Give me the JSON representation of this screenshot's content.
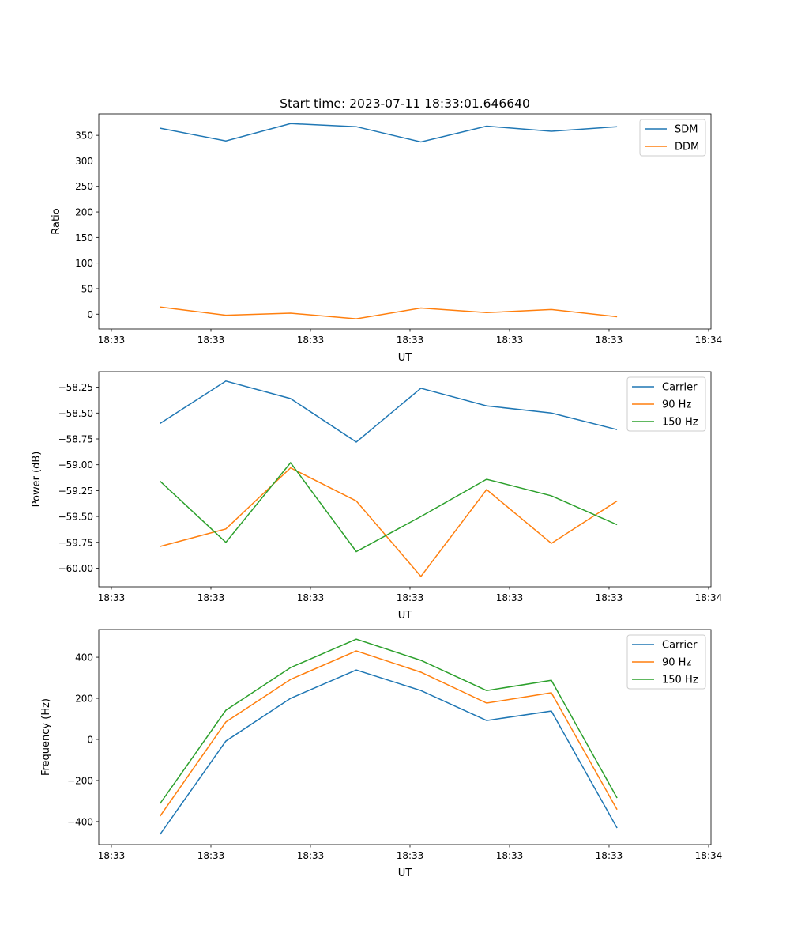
{
  "colors": {
    "c0": "#1f77b4",
    "c1": "#ff7f0e",
    "c2": "#2ca02c"
  },
  "chart_data": [
    {
      "type": "line",
      "title": "Start time: 2023-07-11 18:33:01.646640",
      "xlabel": "UT",
      "ylabel": "Ratio",
      "x": [
        4.9,
        11.5,
        18.0,
        24.6,
        31.1,
        37.7,
        44.2,
        50.8
      ],
      "xlim": [
        -1.27,
        60.24
      ],
      "xticks": [
        0,
        10,
        20,
        30,
        40,
        50,
        60
      ],
      "xtick_labels": [
        "18:33",
        "18:33",
        "18:33",
        "18:33",
        "18:33",
        "18:33",
        "18:34"
      ],
      "ylim": [
        -29,
        392
      ],
      "yticks": [
        0,
        50,
        100,
        150,
        200,
        250,
        300,
        350
      ],
      "ytick_labels": [
        "0",
        "50",
        "100",
        "150",
        "200",
        "250",
        "300",
        "350"
      ],
      "legend_loc": "top-right",
      "series": [
        {
          "name": "SDM",
          "values": [
            364,
            339,
            373,
            367,
            337,
            368,
            358,
            367
          ]
        },
        {
          "name": "DDM",
          "values": [
            14,
            -2,
            2,
            -9,
            12,
            3,
            9,
            -5
          ]
        }
      ]
    },
    {
      "type": "line",
      "title": "",
      "xlabel": "UT",
      "ylabel": "Power (dB)",
      "x": [
        4.9,
        11.5,
        18.0,
        24.6,
        31.1,
        37.7,
        44.2,
        50.8
      ],
      "xlim": [
        -1.27,
        60.24
      ],
      "xticks": [
        0,
        10,
        20,
        30,
        40,
        50,
        60
      ],
      "xtick_labels": [
        "18:33",
        "18:33",
        "18:33",
        "18:33",
        "18:33",
        "18:33",
        "18:34"
      ],
      "ylim": [
        -60.18,
        -58.1
      ],
      "yticks": [
        -60.0,
        -59.75,
        -59.5,
        -59.25,
        -59.0,
        -58.75,
        -58.5,
        -58.25
      ],
      "ytick_labels": [
        "−60.00",
        "−59.75",
        "−59.50",
        "−59.25",
        "−59.00",
        "−58.75",
        "−58.50",
        "−58.25"
      ],
      "legend_loc": "top-right",
      "series": [
        {
          "name": "Carrier",
          "values": [
            -58.6,
            -58.19,
            -58.36,
            -58.78,
            -58.26,
            -58.43,
            -58.5,
            -58.66
          ]
        },
        {
          "name": "90 Hz",
          "values": [
            -59.79,
            -59.62,
            -59.03,
            -59.35,
            -60.08,
            -59.24,
            -59.76,
            -59.35
          ]
        },
        {
          "name": "150 Hz",
          "values": [
            -59.16,
            -59.75,
            -58.98,
            -59.84,
            -59.5,
            -59.14,
            -59.3,
            -59.58
          ]
        }
      ]
    },
    {
      "type": "line",
      "title": "",
      "xlabel": "UT",
      "ylabel": "Frequency (Hz)",
      "x": [
        4.9,
        11.5,
        18.0,
        24.6,
        31.1,
        37.7,
        44.2,
        50.8
      ],
      "xlim": [
        -1.27,
        60.24
      ],
      "xticks": [
        0,
        10,
        20,
        30,
        40,
        50,
        60
      ],
      "xtick_labels": [
        "18:33",
        "18:33",
        "18:33",
        "18:33",
        "18:33",
        "18:33",
        "18:34"
      ],
      "ylim": [
        -512,
        535
      ],
      "yticks": [
        -400,
        -200,
        0,
        200,
        400
      ],
      "ytick_labels": [
        "−400",
        "−200",
        "0",
        "200",
        "400"
      ],
      "legend_loc": "top-right",
      "series": [
        {
          "name": "Carrier",
          "values": [
            -462,
            -8,
            200,
            338,
            238,
            92,
            138,
            -431
          ]
        },
        {
          "name": "90 Hz",
          "values": [
            -373,
            85,
            292,
            431,
            327,
            177,
            227,
            -342
          ]
        },
        {
          "name": "150 Hz",
          "values": [
            -312,
            142,
            350,
            488,
            385,
            238,
            288,
            -285
          ]
        }
      ]
    }
  ]
}
